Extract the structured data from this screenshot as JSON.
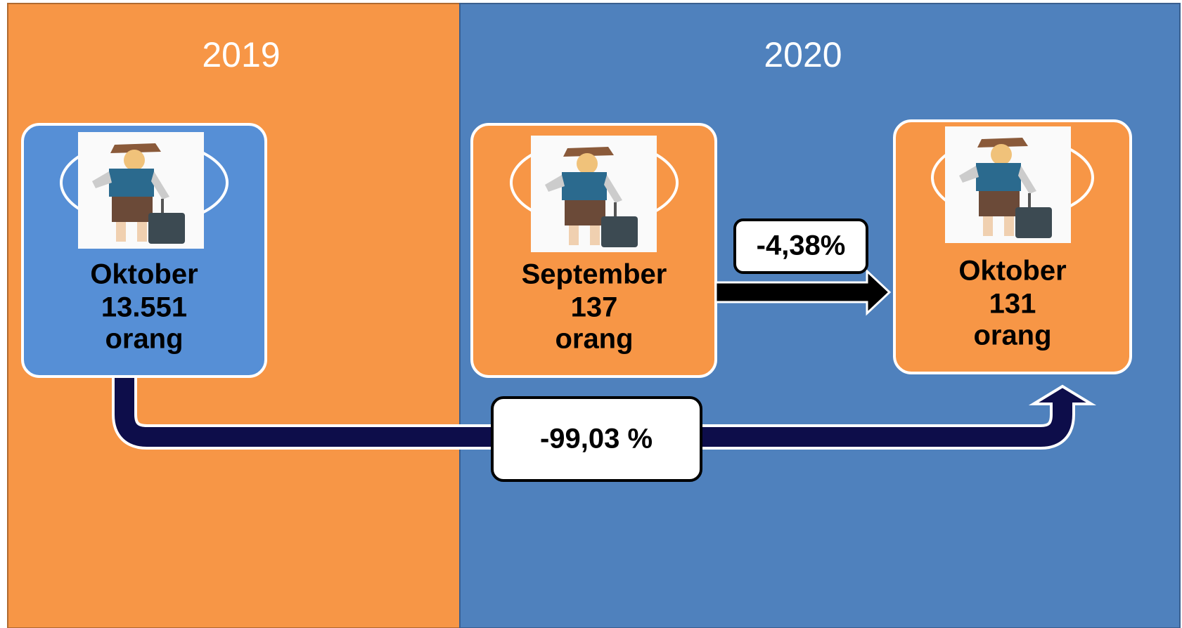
{
  "panels": [
    {
      "year": "2019"
    },
    {
      "year": "2020"
    }
  ],
  "cards": [
    {
      "month": "Oktober",
      "count": "13.551",
      "unit": "orang"
    },
    {
      "month": "September",
      "count": "137",
      "unit": "orang"
    },
    {
      "month": "Oktober",
      "count": "131",
      "unit": "orang"
    }
  ],
  "changes": [
    {
      "label": "-4,38%"
    },
    {
      "label": "-99,03 %"
    }
  ]
}
